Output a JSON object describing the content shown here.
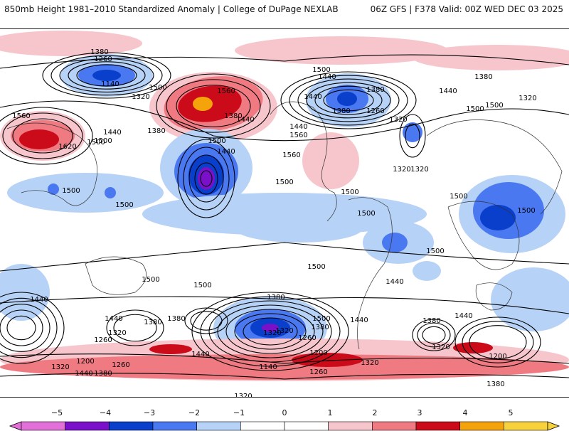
{
  "header": {
    "left_title": "850mb Height 1981–2010 Standardized Anomaly | College of DuPage NEXLAB",
    "right_title": "06Z GFS | F378 Valid: 00Z WED DEC 03 2025"
  },
  "colors": {
    "anom_m5": "#e36fd9",
    "anom_m4": "#7a10c9",
    "anom_m3": "#0a3fcc",
    "anom_m2": "#4a78f0",
    "anom_m1": "#b7d2f7",
    "anom_p1": "#f7c6cc",
    "anom_p2": "#f07a82",
    "anom_p3": "#cc0b1a",
    "anom_p4": "#f5a30a",
    "anom_p5": "#f7d23a",
    "contour": "#000000",
    "coast": "#333333"
  },
  "contour_labels": [
    "1380",
    "1260",
    "1140",
    "1320",
    "1500",
    "1560",
    "1380",
    "1440",
    "1560",
    "1620",
    "1440",
    "1500",
    "1380",
    "1500",
    "1500",
    "1500",
    "1500",
    "1440",
    "1500",
    "1440",
    "1380",
    "1260",
    "1320",
    "1440",
    "1380",
    "1440",
    "1320",
    "1560",
    "1500",
    "1500",
    "1560",
    "1440",
    "1380",
    "1500",
    "1500",
    "1320",
    "1500",
    "1440",
    "1320",
    "1500",
    "1500",
    "1500",
    "1500",
    "1500",
    "1500",
    "1440",
    "1440",
    "1380",
    "1320",
    "1260",
    "1380",
    "1440",
    "1380",
    "1200",
    "1260",
    "1320",
    "1440",
    "1380",
    "1500",
    "1440",
    "1380",
    "1320",
    "1320",
    "1260",
    "1200",
    "1140",
    "1260",
    "1320",
    "1380",
    "1320",
    "1200",
    "1380",
    "1320",
    "1380",
    "1440",
    "1440"
  ],
  "colorbar": {
    "ticks": [
      "−5",
      "−4",
      "−3",
      "−2",
      "−1",
      "0",
      "1",
      "2",
      "3",
      "4",
      "5"
    ]
  }
}
